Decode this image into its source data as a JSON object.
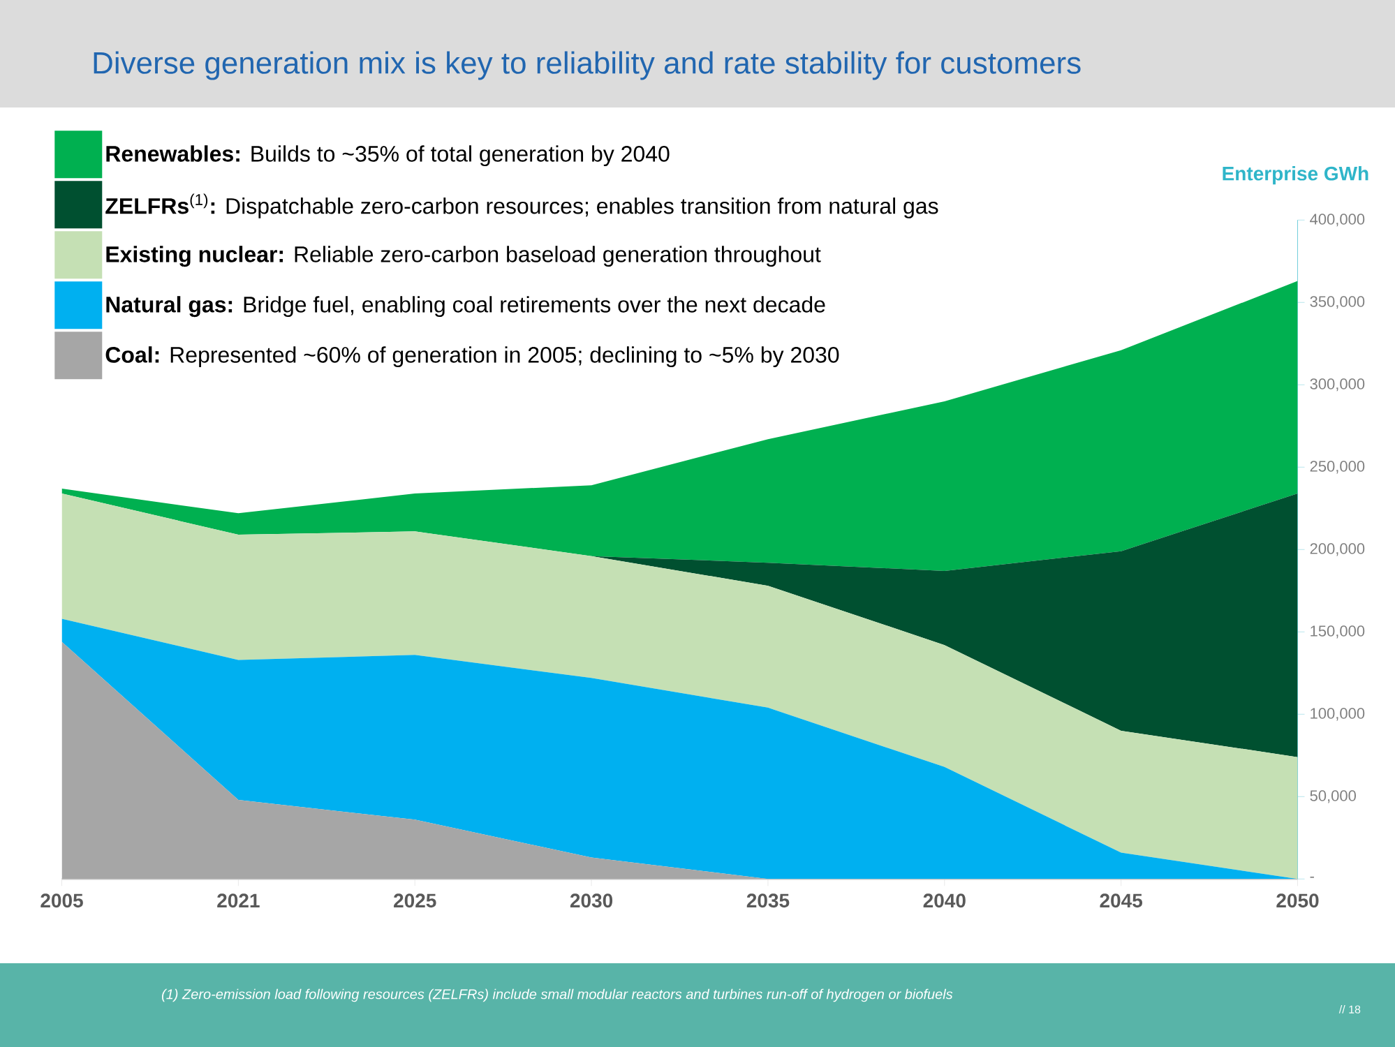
{
  "chart_data": {
    "type": "area",
    "stacked": true,
    "title": "Diverse generation mix is key to reliability and rate stability for customers",
    "ylabel": "Enterprise GWh",
    "categories": [
      "2005",
      "2021",
      "2025",
      "2030",
      "2035",
      "2040",
      "2045",
      "2050"
    ],
    "series": [
      {
        "name": "**Coal:** Represented ~60% of generation in 2005; declining to ~5% by 2030",
        "color": "#a6a6a6",
        "values": [
          144000,
          48000,
          36000,
          13000,
          0,
          0,
          0,
          0
        ]
      },
      {
        "name": "**Natural gas:** Bridge fuel, enabling coal retirements over the next decade",
        "color": "#00b0f0",
        "values": [
          14000,
          85000,
          100000,
          109000,
          104000,
          68000,
          16000,
          0
        ]
      },
      {
        "name": "**Existing nuclear:** Reliable zero-carbon baseload generation throughout",
        "color": "#c5e0b4",
        "values": [
          76000,
          76000,
          75000,
          74000,
          74000,
          74000,
          74000,
          74000
        ]
      },
      {
        "name": "**ZELFRs**$^{(1)}$**:** Dispatchable zero-carbon resources; enables transition from natural gas",
        "color": "#005030",
        "values": [
          0,
          0,
          0,
          0,
          14000,
          45000,
          109000,
          160000
        ]
      },
      {
        "name": "**Renewables:** Builds to ~35% of total generation by 2040",
        "color": "#00b050",
        "values": [
          3000,
          13000,
          23000,
          43000,
          75000,
          103000,
          122000,
          129000
        ]
      }
    ],
    "ylim": [
      0,
      400000
    ],
    "yticks": [
      {
        "value": 0,
        "label": "-"
      },
      {
        "value": 50000,
        "label": "50,000"
      },
      {
        "value": 100000,
        "label": "100,000"
      },
      {
        "value": 150000,
        "label": "150,000"
      },
      {
        "value": 200000,
        "label": "200,000"
      },
      {
        "value": 250000,
        "label": "250,000"
      },
      {
        "value": 300000,
        "label": "300,000"
      },
      {
        "value": 350000,
        "label": "350,000"
      },
      {
        "value": 400000,
        "label": "400,000"
      }
    ],
    "legend": "top left",
    "annotations": [
      "(1)  Zero-emission load following resources (ZELFRs) include small modular reactors and turbines run-off of hydrogen or biofuels",
      "//  18"
    ]
  }
}
